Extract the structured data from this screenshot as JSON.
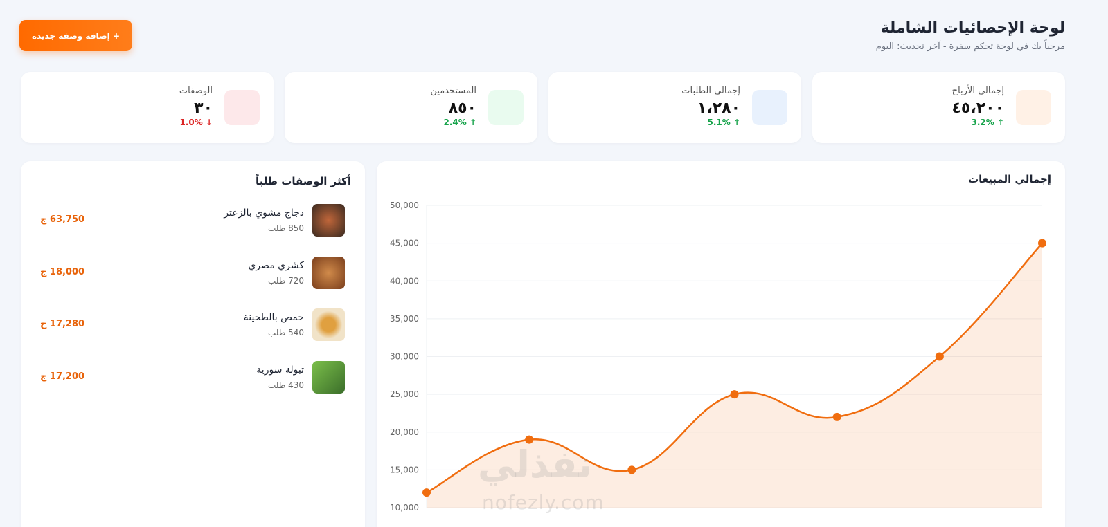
{
  "header": {
    "title": "لوحة الإحصائيات الشاملة",
    "subtitle": "مرحباً بك في لوحة تحكم سفرة - آخر تحديث: اليوم",
    "button": "+ إضافة وصفة جديدة"
  },
  "stats": [
    {
      "label": "إجمالي الأرباح",
      "value": "٤٥،٢٠٠",
      "change": "3.2% ↑",
      "change_color": "#16a34a",
      "icon_bg": "#fff1e6"
    },
    {
      "label": "إجمالي الطلبات",
      "value": "١،٢٨٠",
      "change": "5.1% ↑",
      "change_color": "#16a34a",
      "icon_bg": "#e8f1fd"
    },
    {
      "label": "المستخدمين",
      "value": "٨٥٠",
      "change": "2.4% ↑",
      "change_color": "#16a34a",
      "icon_bg": "#e9fbef"
    },
    {
      "label": "الوصفات",
      "value": "٣٠",
      "change": "1.0% ↓",
      "change_color": "#dc2626",
      "icon_bg": "#fde8ea"
    }
  ],
  "top_recipes": {
    "title": "أكثر الوصفات طلباً",
    "items": [
      {
        "name": "دجاج مشوي بالزعتر",
        "orders": "850 طلب",
        "revenue": "63,750 ج"
      },
      {
        "name": "كشري مصري",
        "orders": "720 طلب",
        "revenue": "18,000 ج"
      },
      {
        "name": "حمص بالطحينة",
        "orders": "540 طلب",
        "revenue": "17,280 ج"
      },
      {
        "name": "تبولة سورية",
        "orders": "430 طلب",
        "revenue": "17,200 ج"
      }
    ]
  },
  "chart_data": {
    "type": "line",
    "title": "إجمالي المبيعات",
    "values": [
      12000,
      19000,
      15000,
      25000,
      22000,
      30000,
      45000
    ],
    "color": "#f06d0f",
    "ylim": [
      10000,
      50000
    ],
    "yticks": [
      {
        "value": 10000,
        "label": "10,000"
      },
      {
        "value": 15000,
        "label": "15,000"
      },
      {
        "value": 20000,
        "label": "20,000"
      },
      {
        "value": 25000,
        "label": "25,000"
      },
      {
        "value": 30000,
        "label": "30,000"
      },
      {
        "value": 35000,
        "label": "35,000"
      },
      {
        "value": 40000,
        "label": "40,000"
      },
      {
        "value": 45000,
        "label": "45,000"
      },
      {
        "value": 50000,
        "label": "50,000"
      }
    ],
    "grid": true
  },
  "watermark": {
    "logo": "نفذلي",
    "url": "nofezly.com"
  }
}
